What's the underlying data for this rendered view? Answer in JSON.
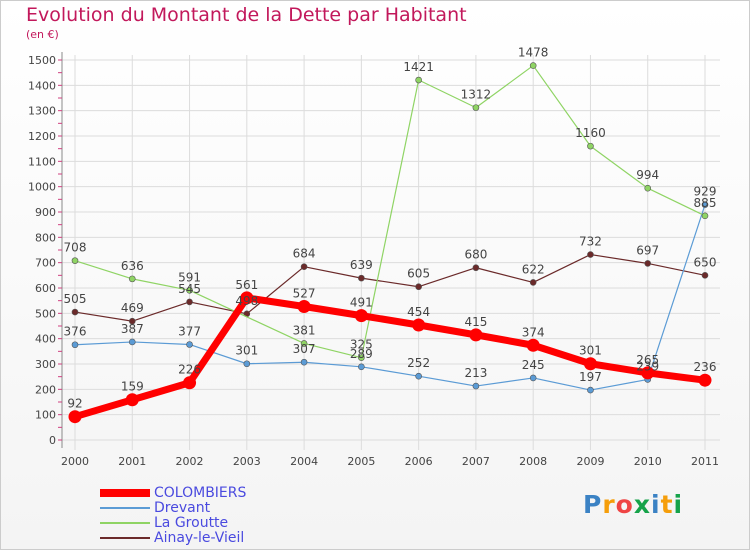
{
  "header": {
    "title": "Evolution du Montant de la Dette par Habitant",
    "unit": "(en €)"
  },
  "chart_data": {
    "type": "line",
    "title": "Evolution du Montant de la Dette par Habitant",
    "subtitle": "(en €)",
    "x": [
      "2000",
      "2001",
      "2002",
      "2003",
      "2004",
      "2005",
      "2006",
      "2007",
      "2008",
      "2009",
      "2010",
      "2011"
    ],
    "ylim": [
      0,
      1500
    ],
    "yticks": [
      0,
      100,
      200,
      300,
      400,
      500,
      600,
      700,
      800,
      900,
      1000,
      1100,
      1200,
      1300,
      1400,
      1500
    ],
    "grid": true,
    "legend_position": "bottom-left",
    "series": [
      {
        "name": "Ainay-le-Vieil",
        "color": "#6b2a2a",
        "width": 1.2,
        "values": [
          505,
          469,
          545,
          498,
          684,
          639,
          605,
          680,
          622,
          732,
          697,
          650
        ]
      },
      {
        "name": "Drevant",
        "color": "#5b9bd5",
        "width": 1.2,
        "values": [
          376,
          387,
          377,
          301,
          307,
          289,
          252,
          213,
          245,
          197,
          239,
          929
        ]
      },
      {
        "name": "La Groutte",
        "color": "#8fd464",
        "width": 1.2,
        "values": [
          708,
          636,
          591,
          null,
          381,
          325,
          1421,
          1312,
          1478,
          1160,
          994,
          885
        ]
      },
      {
        "name": "COLOMBIERS",
        "color": "#ff0000",
        "width": 7,
        "values": [
          92,
          159,
          226,
          561,
          527,
          491,
          454,
          415,
          374,
          301,
          265,
          236
        ]
      }
    ],
    "data_labels": [
      {
        "series": "Ainay-le-Vieil",
        "labels": [
          "505",
          "469",
          "545",
          "498",
          "684",
          "639",
          "605",
          "680",
          "622",
          "732",
          "697",
          "650"
        ]
      },
      {
        "series": "Drevant",
        "labels": [
          "376",
          "387",
          "377",
          "301",
          "307",
          "289",
          "252",
          "213",
          "245",
          "197",
          "239",
          "929"
        ]
      },
      {
        "series": "La Groutte",
        "labels": [
          "708",
          "636",
          "591",
          "",
          "381",
          "325",
          "1421",
          "1312",
          "1478",
          "1160",
          "994",
          "885"
        ]
      },
      {
        "series": "COLOMBIERS",
        "labels": [
          "92",
          "159",
          "226",
          "561",
          "527",
          "491",
          "454",
          "415",
          "374",
          "301",
          "265",
          "236"
        ]
      }
    ]
  },
  "legend": {
    "items": [
      {
        "label": "COLOMBIERS",
        "color": "#ff0000"
      },
      {
        "label": "Drevant",
        "color": "#5b9bd5"
      },
      {
        "label": "La Groutte",
        "color": "#8fd464"
      },
      {
        "label": "Ainay-le-Vieil",
        "color": "#6b2a2a"
      }
    ]
  },
  "branding": {
    "logo_text": "Proxiti",
    "logo_colors": [
      "#3b82c4",
      "#f59e0b",
      "#ef4444",
      "#16a34a",
      "#3b82c4",
      "#f59e0b",
      "#16a34a"
    ]
  }
}
